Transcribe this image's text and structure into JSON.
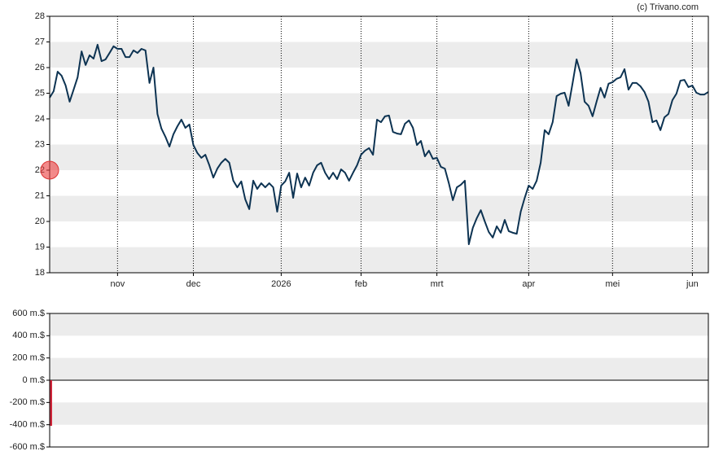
{
  "chart_data": [
    {
      "type": "line",
      "annotation": "(c) Trivano.com",
      "color": "#0d3352",
      "xlim": [
        0,
        165
      ],
      "xticks": [
        {
          "value": 17,
          "label": "nov"
        },
        {
          "value": 36,
          "label": "dec"
        },
        {
          "value": 58,
          "label": "2026"
        },
        {
          "value": 78,
          "label": "feb"
        },
        {
          "value": 97,
          "label": "mrt"
        },
        {
          "value": 120,
          "label": "apr"
        },
        {
          "value": 141,
          "label": "mei"
        },
        {
          "value": 161,
          "label": "jun"
        }
      ],
      "ylim": [
        18,
        28
      ],
      "yticks": [
        18,
        19,
        20,
        21,
        22,
        23,
        24,
        25,
        26,
        27,
        28
      ],
      "values": [
        24.83,
        25.08,
        25.84,
        25.68,
        25.3,
        24.67,
        25.14,
        25.62,
        26.63,
        26.1,
        26.48,
        26.35,
        26.89,
        26.25,
        26.32,
        26.57,
        26.83,
        26.73,
        26.73,
        26.41,
        26.41,
        26.67,
        26.57,
        26.73,
        26.67,
        25.4,
        26.0,
        24.19,
        23.62,
        23.3,
        22.92,
        23.4,
        23.71,
        23.97,
        23.65,
        23.78,
        22.98,
        22.67,
        22.48,
        22.6,
        22.19,
        21.71,
        22.06,
        22.29,
        22.44,
        22.29,
        21.59,
        21.33,
        21.56,
        20.86,
        20.48,
        21.59,
        21.27,
        21.49,
        21.33,
        21.49,
        21.33,
        20.38,
        21.4,
        21.56,
        21.9,
        20.92,
        21.87,
        21.33,
        21.71,
        21.4,
        21.9,
        22.19,
        22.29,
        21.9,
        21.65,
        21.9,
        21.65,
        22.03,
        21.9,
        21.59,
        21.9,
        22.19,
        22.6,
        22.76,
        22.86,
        22.6,
        23.97,
        23.87,
        24.1,
        24.13,
        23.49,
        23.43,
        23.4,
        23.81,
        23.94,
        23.65,
        22.98,
        23.14,
        22.54,
        22.76,
        22.44,
        22.48,
        22.13,
        22.06,
        21.49,
        20.83,
        21.33,
        21.43,
        21.59,
        19.11,
        19.75,
        20.13,
        20.44,
        20.0,
        19.59,
        19.37,
        19.81,
        19.56,
        20.06,
        19.62,
        19.56,
        19.52,
        20.38,
        20.92,
        21.4,
        21.27,
        21.59,
        22.29,
        23.56,
        23.4,
        23.87,
        24.89,
        24.98,
        25.02,
        24.51,
        25.4,
        26.32,
        25.78,
        24.67,
        24.51,
        24.1,
        24.67,
        25.21,
        24.83,
        25.37,
        25.43,
        25.56,
        25.62,
        25.94,
        25.14,
        25.4,
        25.4,
        25.27,
        25.05,
        24.67,
        23.87,
        23.94,
        23.56,
        24.06,
        24.19,
        24.73,
        24.98,
        25.49,
        25.52,
        25.24,
        25.3,
        25.02,
        24.95,
        24.95,
        25.05
      ]
    },
    {
      "type": "bar",
      "color": "#d0263a",
      "xlim": [
        0,
        165
      ],
      "x": [
        0
      ],
      "values": [
        -410
      ],
      "ylim": [
        -600,
        600
      ],
      "yticks": [
        {
          "value": -600,
          "label": "-600 m.$"
        },
        {
          "value": -400,
          "label": "-400 m.$"
        },
        {
          "value": -200,
          "label": "-200 m.$"
        },
        {
          "value": 0,
          "label": "0 m.$"
        },
        {
          "value": 200,
          "label": "200 m.$"
        },
        {
          "value": 400,
          "label": "400 m.$"
        },
        {
          "value": 600,
          "label": "600 m.$"
        }
      ]
    }
  ]
}
